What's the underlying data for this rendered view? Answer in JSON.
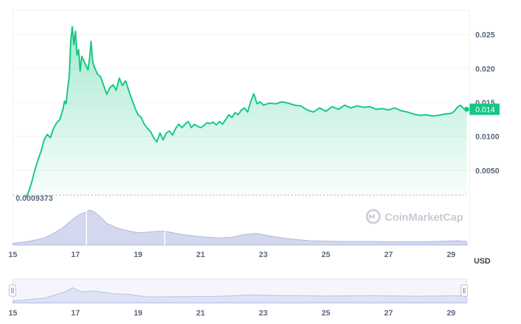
{
  "chart_data": {
    "type": "area",
    "currency_label": "USD",
    "last_price_label": "0.014",
    "min_price_label": "0.0009373",
    "brand": "CoinMarketCap",
    "colors": {
      "line": "#16c784",
      "fill": "#16c784",
      "volume": "#c5cbe8",
      "navigator": "#dfe3f6",
      "grid": "#eff2f5",
      "axis_text": "#58667e"
    },
    "y_axis": {
      "ticks": [
        0.005,
        0.01,
        0.015,
        0.02,
        0.025
      ],
      "tick_labels": [
        "0.0050",
        "0.0100",
        "0.015",
        "0.020",
        "0.025"
      ],
      "range": [
        0.0009373,
        0.028
      ]
    },
    "x_axis": {
      "ticks": [
        15,
        17,
        19,
        21,
        23,
        25,
        27,
        29
      ],
      "tick_labels": [
        "15",
        "17",
        "19",
        "21",
        "23",
        "25",
        "27",
        "29"
      ],
      "range": [
        15,
        29.5
      ]
    },
    "price_points": [
      [
        15.4,
        0.0009373
      ],
      [
        15.5,
        0.0018
      ],
      [
        15.6,
        0.0032
      ],
      [
        15.7,
        0.005
      ],
      [
        15.8,
        0.0065
      ],
      [
        15.9,
        0.0078
      ],
      [
        16.0,
        0.0095
      ],
      [
        16.1,
        0.0103
      ],
      [
        16.2,
        0.0098
      ],
      [
        16.3,
        0.0112
      ],
      [
        16.4,
        0.012
      ],
      [
        16.5,
        0.0125
      ],
      [
        16.6,
        0.014
      ],
      [
        16.65,
        0.0152
      ],
      [
        16.7,
        0.0148
      ],
      [
        16.75,
        0.017
      ],
      [
        16.8,
        0.0188
      ],
      [
        16.85,
        0.024
      ],
      [
        16.9,
        0.0262
      ],
      [
        16.95,
        0.0235
      ],
      [
        17.0,
        0.0255
      ],
      [
        17.05,
        0.022
      ],
      [
        17.1,
        0.0228
      ],
      [
        17.15,
        0.0196
      ],
      [
        17.2,
        0.0218
      ],
      [
        17.3,
        0.0208
      ],
      [
        17.4,
        0.0198
      ],
      [
        17.45,
        0.0215
      ],
      [
        17.5,
        0.024
      ],
      [
        17.55,
        0.021
      ],
      [
        17.6,
        0.0203
      ],
      [
        17.7,
        0.0192
      ],
      [
        17.8,
        0.0188
      ],
      [
        17.9,
        0.0175
      ],
      [
        18.0,
        0.0162
      ],
      [
        18.1,
        0.0172
      ],
      [
        18.2,
        0.0176
      ],
      [
        18.3,
        0.0168
      ],
      [
        18.4,
        0.0186
      ],
      [
        18.5,
        0.0175
      ],
      [
        18.6,
        0.0182
      ],
      [
        18.7,
        0.0168
      ],
      [
        18.8,
        0.0155
      ],
      [
        18.9,
        0.0142
      ],
      [
        19.0,
        0.0132
      ],
      [
        19.1,
        0.0128
      ],
      [
        19.2,
        0.0118
      ],
      [
        19.3,
        0.0112
      ],
      [
        19.4,
        0.0107
      ],
      [
        19.5,
        0.0098
      ],
      [
        19.6,
        0.0092
      ],
      [
        19.7,
        0.0105
      ],
      [
        19.8,
        0.0095
      ],
      [
        19.9,
        0.0105
      ],
      [
        20.0,
        0.0108
      ],
      [
        20.1,
        0.0102
      ],
      [
        20.2,
        0.0112
      ],
      [
        20.3,
        0.0118
      ],
      [
        20.4,
        0.0113
      ],
      [
        20.5,
        0.0118
      ],
      [
        20.6,
        0.0122
      ],
      [
        20.7,
        0.0113
      ],
      [
        20.8,
        0.0118
      ],
      [
        20.9,
        0.0115
      ],
      [
        21.0,
        0.0113
      ],
      [
        21.1,
        0.0116
      ],
      [
        21.2,
        0.012
      ],
      [
        21.3,
        0.0119
      ],
      [
        21.4,
        0.0121
      ],
      [
        21.5,
        0.0117
      ],
      [
        21.6,
        0.0122
      ],
      [
        21.7,
        0.0118
      ],
      [
        21.8,
        0.0125
      ],
      [
        21.9,
        0.0132
      ],
      [
        22.0,
        0.0128
      ],
      [
        22.1,
        0.0135
      ],
      [
        22.2,
        0.0132
      ],
      [
        22.3,
        0.0139
      ],
      [
        22.4,
        0.0142
      ],
      [
        22.5,
        0.0136
      ],
      [
        22.6,
        0.0152
      ],
      [
        22.7,
        0.0163
      ],
      [
        22.8,
        0.0148
      ],
      [
        22.9,
        0.0151
      ],
      [
        23.0,
        0.0146
      ],
      [
        23.2,
        0.0149
      ],
      [
        23.4,
        0.0148
      ],
      [
        23.6,
        0.0151
      ],
      [
        23.8,
        0.0149
      ],
      [
        24.0,
        0.0146
      ],
      [
        24.2,
        0.0145
      ],
      [
        24.4,
        0.0139
      ],
      [
        24.6,
        0.0136
      ],
      [
        24.8,
        0.0142
      ],
      [
        25.0,
        0.0137
      ],
      [
        25.2,
        0.0144
      ],
      [
        25.4,
        0.014
      ],
      [
        25.6,
        0.0146
      ],
      [
        25.8,
        0.0142
      ],
      [
        26.0,
        0.0145
      ],
      [
        26.2,
        0.0143
      ],
      [
        26.4,
        0.0144
      ],
      [
        26.6,
        0.014
      ],
      [
        26.8,
        0.0141
      ],
      [
        27.0,
        0.0139
      ],
      [
        27.2,
        0.0142
      ],
      [
        27.4,
        0.0138
      ],
      [
        27.6,
        0.0136
      ],
      [
        27.8,
        0.0133
      ],
      [
        28.0,
        0.0131
      ],
      [
        28.2,
        0.0132
      ],
      [
        28.4,
        0.013
      ],
      [
        28.6,
        0.0131
      ],
      [
        28.8,
        0.0133
      ],
      [
        29.0,
        0.0134
      ],
      [
        29.1,
        0.0137
      ],
      [
        29.2,
        0.0143
      ],
      [
        29.3,
        0.0146
      ],
      [
        29.4,
        0.0141
      ],
      [
        29.5,
        0.014
      ]
    ],
    "volume_points": [
      [
        15.0,
        0.05
      ],
      [
        15.5,
        0.1
      ],
      [
        16.0,
        0.2
      ],
      [
        16.3,
        0.33
      ],
      [
        16.6,
        0.5
      ],
      [
        16.9,
        0.72
      ],
      [
        17.1,
        0.86
      ],
      [
        17.3,
        0.93
      ],
      [
        17.45,
        1.0
      ],
      [
        17.6,
        0.95
      ],
      [
        17.8,
        0.8
      ],
      [
        18.0,
        0.62
      ],
      [
        18.3,
        0.5
      ],
      [
        18.6,
        0.42
      ],
      [
        19.0,
        0.35
      ],
      [
        19.5,
        0.38
      ],
      [
        19.8,
        0.4
      ],
      [
        20.0,
        0.37
      ],
      [
        20.4,
        0.3
      ],
      [
        21.0,
        0.24
      ],
      [
        21.6,
        0.2
      ],
      [
        22.0,
        0.22
      ],
      [
        22.4,
        0.3
      ],
      [
        22.8,
        0.33
      ],
      [
        23.2,
        0.26
      ],
      [
        23.8,
        0.18
      ],
      [
        24.5,
        0.12
      ],
      [
        25.5,
        0.1
      ],
      [
        26.5,
        0.1
      ],
      [
        27.5,
        0.09
      ],
      [
        28.5,
        0.1
      ],
      [
        29.2,
        0.12
      ],
      [
        29.5,
        0.1
      ]
    ],
    "navigator_points": [
      [
        15.0,
        0.12
      ],
      [
        16.0,
        0.3
      ],
      [
        16.7,
        0.75
      ],
      [
        16.9,
        1.0
      ],
      [
        17.2,
        0.72
      ],
      [
        17.6,
        0.78
      ],
      [
        18.2,
        0.6
      ],
      [
        18.7,
        0.55
      ],
      [
        19.3,
        0.38
      ],
      [
        20.5,
        0.4
      ],
      [
        21.5,
        0.42
      ],
      [
        22.6,
        0.52
      ],
      [
        23.5,
        0.48
      ],
      [
        25.0,
        0.45
      ],
      [
        26.5,
        0.47
      ],
      [
        28.0,
        0.43
      ],
      [
        29.0,
        0.46
      ],
      [
        29.5,
        0.45
      ]
    ]
  }
}
